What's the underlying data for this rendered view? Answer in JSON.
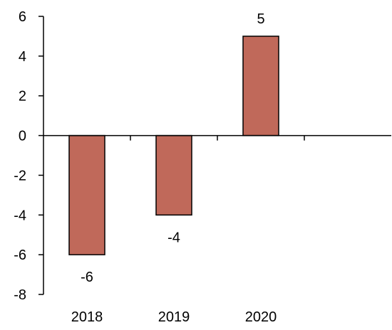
{
  "chart_data": {
    "type": "bar",
    "categories": [
      "2018",
      "2019",
      "2020",
      ""
    ],
    "values": [
      -6,
      -4,
      5,
      null
    ],
    "data_labels": [
      "-6",
      "-4",
      "5",
      ""
    ],
    "ylim": [
      -8,
      6
    ],
    "yticks": [
      6,
      4,
      2,
      0,
      -2,
      -4,
      -6,
      -8
    ],
    "ytick_labels": [
      "6",
      "4",
      "2",
      "0",
      "-2",
      "-4",
      "-6",
      "-8"
    ],
    "title": "",
    "xlabel": "",
    "ylabel": "",
    "grid": false,
    "legend": "none",
    "colors": {
      "bar_fill": "#c0695a",
      "bar_stroke": "#000000",
      "axis": "#000000",
      "text": "#000000"
    }
  }
}
